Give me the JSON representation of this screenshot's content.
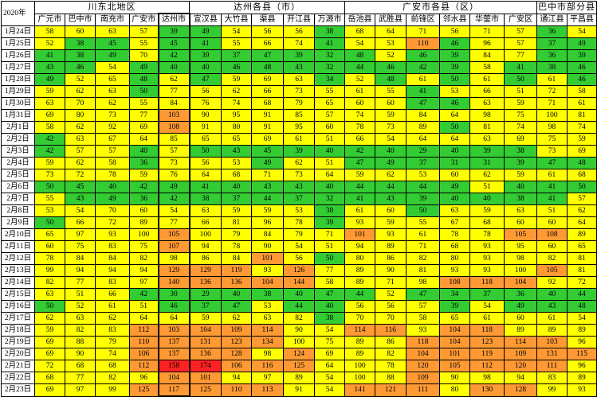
{
  "header": {
    "corner": "2020年",
    "groups": [
      "川东北地区",
      "达州各县（市）",
      "广安市各县（区）",
      "巴中市部分县"
    ],
    "columns": [
      "广元市",
      "巴中市",
      "南充市",
      "广安市",
      "达州市",
      "宣汉县",
      "大竹县",
      "渠县",
      "开江县",
      "万源市",
      "岳池县",
      "武胜县",
      "前锋区",
      "邻水县",
      "华蓥市",
      "广安区",
      "通江县",
      "平昌县"
    ]
  },
  "colors": {
    "yellow": "#ffff00",
    "green": "#33cc33",
    "orange": "#ff9933",
    "red": "#ff2222"
  },
  "rows": [
    {
      "date": "1月24日",
      "values": [
        "58",
        "60",
        "63",
        "57",
        "39",
        "49",
        "54",
        "56",
        "56",
        "38",
        "68",
        "64",
        "71",
        "56",
        "71",
        "57",
        "36",
        "54"
      ],
      "levels": [
        "y",
        "y",
        "y",
        "y",
        "g",
        "g",
        "y",
        "y",
        "y",
        "g",
        "y",
        "y",
        "y",
        "y",
        "y",
        "y",
        "g",
        "y"
      ]
    },
    {
      "date": "1月25日",
      "values": [
        "52",
        "38",
        "45",
        "55",
        "45",
        "41",
        "55",
        "66",
        "74",
        "41",
        "54",
        "53",
        "110",
        "46",
        "96",
        "57",
        "37",
        "49"
      ],
      "levels": [
        "y",
        "g",
        "g",
        "y",
        "g",
        "g",
        "y",
        "y",
        "y",
        "g",
        "y",
        "y",
        "o",
        "g",
        "y",
        "y",
        "g",
        "g"
      ]
    },
    {
      "date": "1月26日",
      "values": [
        "41",
        "38",
        "49",
        "70",
        "42",
        "39",
        "37",
        "47",
        "39",
        "32",
        "48",
        "52",
        "46",
        "39",
        "84",
        "77",
        "36",
        "39"
      ],
      "levels": [
        "g",
        "g",
        "g",
        "y",
        "g",
        "g",
        "g",
        "g",
        "g",
        "g",
        "g",
        "y",
        "g",
        "g",
        "y",
        "y",
        "g",
        "g"
      ]
    },
    {
      "date": "1月27日",
      "values": [
        "43",
        "46",
        "54",
        "49",
        "40",
        "40",
        "46",
        "48",
        "43",
        "32",
        "44",
        "46",
        "42",
        "39",
        "58",
        "41",
        "38",
        "46"
      ],
      "levels": [
        "g",
        "g",
        "y",
        "g",
        "g",
        "g",
        "g",
        "g",
        "g",
        "g",
        "g",
        "g",
        "g",
        "g",
        "y",
        "g",
        "g",
        "g"
      ]
    },
    {
      "date": "1月28日",
      "values": [
        "49",
        "52",
        "65",
        "48",
        "62",
        "47",
        "59",
        "69",
        "63",
        "34",
        "52",
        "48",
        "61",
        "50",
        "61",
        "50",
        "61",
        "46"
      ],
      "levels": [
        "g",
        "y",
        "y",
        "g",
        "y",
        "g",
        "y",
        "y",
        "y",
        "g",
        "y",
        "g",
        "y",
        "g",
        "y",
        "g",
        "y",
        "g"
      ]
    },
    {
      "date": "1月29日",
      "values": [
        "59",
        "62",
        "63",
        "50",
        "77",
        "56",
        "62",
        "66",
        "73",
        "55",
        "61",
        "55",
        "41",
        "53",
        "66",
        "51",
        "72",
        "58"
      ],
      "levels": [
        "y",
        "y",
        "y",
        "g",
        "y",
        "y",
        "y",
        "y",
        "y",
        "y",
        "y",
        "y",
        "g",
        "y",
        "y",
        "y",
        "y",
        "y"
      ]
    },
    {
      "date": "1月30日",
      "values": [
        "63",
        "70",
        "62",
        "55",
        "84",
        "76",
        "74",
        "68",
        "79",
        "65",
        "60",
        "60",
        "47",
        "46",
        "63",
        "59",
        "71",
        "61"
      ],
      "levels": [
        "y",
        "y",
        "y",
        "y",
        "y",
        "y",
        "y",
        "y",
        "y",
        "y",
        "y",
        "y",
        "g",
        "g",
        "y",
        "y",
        "y",
        "y"
      ]
    },
    {
      "date": "1月31日",
      "values": [
        "69",
        "80",
        "73",
        "77",
        "103",
        "90",
        "95",
        "91",
        "85",
        "57",
        "74",
        "59",
        "84",
        "64",
        "98",
        "75",
        "100",
        "81"
      ],
      "levels": [
        "y",
        "y",
        "y",
        "y",
        "o",
        "y",
        "y",
        "y",
        "y",
        "y",
        "y",
        "y",
        "y",
        "y",
        "y",
        "y",
        "y",
        "y"
      ]
    },
    {
      "date": "2月1日",
      "values": [
        "58",
        "62",
        "92",
        "69",
        "108",
        "91",
        "80",
        "91",
        "95",
        "60",
        "78",
        "73",
        "89",
        "50",
        "81",
        "74",
        "98",
        "74"
      ],
      "levels": [
        "y",
        "y",
        "y",
        "y",
        "o",
        "y",
        "y",
        "y",
        "y",
        "y",
        "y",
        "y",
        "y",
        "g",
        "y",
        "y",
        "y",
        "y"
      ]
    },
    {
      "date": "2月2日",
      "values": [
        "42",
        "63",
        "67",
        "64",
        "85",
        "65",
        "65",
        "69",
        "61",
        "51",
        "66",
        "54",
        "64",
        "64",
        "63",
        "69",
        "75",
        "59"
      ],
      "levels": [
        "g",
        "y",
        "y",
        "y",
        "y",
        "y",
        "y",
        "y",
        "y",
        "y",
        "y",
        "y",
        "y",
        "y",
        "y",
        "y",
        "y",
        "y"
      ]
    },
    {
      "date": "2月3日",
      "values": [
        "42",
        "57",
        "57",
        "40",
        "57",
        "50",
        "43",
        "45",
        "39",
        "40",
        "42",
        "40",
        "29",
        "40",
        "39",
        "38",
        "73",
        "69"
      ],
      "levels": [
        "g",
        "y",
        "y",
        "g",
        "y",
        "g",
        "g",
        "g",
        "g",
        "g",
        "g",
        "g",
        "g",
        "g",
        "g",
        "g",
        "y",
        "y"
      ]
    },
    {
      "date": "2月4日",
      "values": [
        "59",
        "62",
        "58",
        "36",
        "73",
        "56",
        "53",
        "49",
        "62",
        "51",
        "47",
        "49",
        "37",
        "31",
        "31",
        "39",
        "47",
        "48"
      ],
      "levels": [
        "y",
        "y",
        "y",
        "g",
        "y",
        "y",
        "y",
        "g",
        "y",
        "y",
        "g",
        "g",
        "g",
        "g",
        "g",
        "g",
        "g",
        "g"
      ]
    },
    {
      "date": "2月5日",
      "values": [
        "73",
        "72",
        "78",
        "59",
        "76",
        "64",
        "68",
        "71",
        "73",
        "64",
        "59",
        "62",
        "53",
        "60",
        "62",
        "59",
        "61",
        "68"
      ],
      "levels": [
        "y",
        "y",
        "y",
        "y",
        "y",
        "y",
        "y",
        "y",
        "y",
        "y",
        "y",
        "y",
        "y",
        "y",
        "y",
        "y",
        "y",
        "y"
      ]
    },
    {
      "date": "2月6日",
      "values": [
        "50",
        "45",
        "40",
        "42",
        "49",
        "41",
        "40",
        "43",
        "43",
        "40",
        "44",
        "44",
        "44",
        "49",
        "51",
        "40",
        "41",
        "50"
      ],
      "levels": [
        "g",
        "g",
        "g",
        "g",
        "g",
        "g",
        "g",
        "g",
        "g",
        "g",
        "g",
        "g",
        "g",
        "g",
        "y",
        "g",
        "g",
        "g"
      ]
    },
    {
      "date": "2月7日",
      "values": [
        "55",
        "43",
        "49",
        "36",
        "42",
        "38",
        "37",
        "44",
        "37",
        "32",
        "41",
        "43",
        "39",
        "40",
        "40",
        "38",
        "41",
        "57"
      ],
      "levels": [
        "y",
        "g",
        "g",
        "g",
        "g",
        "g",
        "g",
        "g",
        "g",
        "g",
        "g",
        "g",
        "g",
        "g",
        "g",
        "g",
        "g",
        "y"
      ]
    },
    {
      "date": "2月8日",
      "values": [
        "53",
        "54",
        "70",
        "60",
        "54",
        "63",
        "59",
        "59",
        "53",
        "38",
        "61",
        "60",
        "50",
        "63",
        "59",
        "63",
        "51",
        "62"
      ],
      "levels": [
        "y",
        "y",
        "y",
        "y",
        "y",
        "y",
        "y",
        "y",
        "y",
        "g",
        "y",
        "y",
        "g",
        "y",
        "y",
        "y",
        "y",
        "y"
      ]
    },
    {
      "date": "2月9日",
      "values": [
        "50",
        "66",
        "72",
        "89",
        "77",
        "66",
        "81",
        "96",
        "78",
        "39",
        "93",
        "59",
        "55",
        "67",
        "68",
        "60",
        "60",
        "64"
      ],
      "levels": [
        "g",
        "y",
        "y",
        "y",
        "y",
        "y",
        "y",
        "y",
        "y",
        "g",
        "y",
        "y",
        "y",
        "y",
        "y",
        "y",
        "y",
        "y"
      ]
    },
    {
      "date": "2月10日",
      "values": [
        "65",
        "97",
        "93",
        "100",
        "105",
        "100",
        "79",
        "84",
        "79",
        "71",
        "101",
        "93",
        "61",
        "78",
        "78",
        "105",
        "108",
        "89"
      ],
      "levels": [
        "y",
        "y",
        "y",
        "y",
        "o",
        "y",
        "y",
        "y",
        "y",
        "y",
        "o",
        "y",
        "y",
        "y",
        "y",
        "o",
        "o",
        "y"
      ]
    },
    {
      "date": "2月11日",
      "values": [
        "60",
        "75",
        "83",
        "75",
        "107",
        "94",
        "78",
        "90",
        "54",
        "51",
        "94",
        "89",
        "71",
        "68",
        "93",
        "95",
        "60",
        "65"
      ],
      "levels": [
        "y",
        "y",
        "y",
        "y",
        "o",
        "y",
        "y",
        "y",
        "y",
        "y",
        "y",
        "y",
        "y",
        "y",
        "y",
        "y",
        "y",
        "y"
      ]
    },
    {
      "date": "2月12日",
      "values": [
        "78",
        "84",
        "84",
        "82",
        "98",
        "86",
        "84",
        "101",
        "56",
        "50",
        "80",
        "86",
        "82",
        "80",
        "93",
        "98",
        "82",
        "81"
      ],
      "levels": [
        "y",
        "y",
        "y",
        "y",
        "y",
        "y",
        "y",
        "o",
        "y",
        "g",
        "y",
        "y",
        "y",
        "y",
        "y",
        "y",
        "y",
        "y"
      ]
    },
    {
      "date": "2月13日",
      "values": [
        "99",
        "94",
        "94",
        "94",
        "129",
        "129",
        "119",
        "93",
        "126",
        "77",
        "89",
        "90",
        "81",
        "93",
        "93",
        "100",
        "105",
        "81"
      ],
      "levels": [
        "y",
        "y",
        "y",
        "y",
        "o",
        "o",
        "o",
        "y",
        "o",
        "y",
        "y",
        "y",
        "y",
        "y",
        "y",
        "y",
        "o",
        "y"
      ]
    },
    {
      "date": "2月14日",
      "values": [
        "82",
        "77",
        "83",
        "97",
        "140",
        "136",
        "136",
        "104",
        "144",
        "58",
        "89",
        "71",
        "98",
        "108",
        "118",
        "104",
        "92",
        "72"
      ],
      "levels": [
        "y",
        "y",
        "y",
        "y",
        "o",
        "o",
        "o",
        "o",
        "o",
        "y",
        "y",
        "y",
        "y",
        "o",
        "o",
        "o",
        "y",
        "y"
      ]
    },
    {
      "date": "2月15日",
      "values": [
        "63",
        "51",
        "66",
        "42",
        "30",
        "29",
        "40",
        "38",
        "40",
        "47",
        "44",
        "52",
        "47",
        "34",
        "37",
        "36",
        "40",
        "44"
      ],
      "levels": [
        "y",
        "y",
        "y",
        "g",
        "g",
        "g",
        "g",
        "g",
        "g",
        "g",
        "g",
        "y",
        "g",
        "g",
        "g",
        "g",
        "g",
        "g"
      ]
    },
    {
      "date": "2月16日",
      "values": [
        "50",
        "52",
        "61",
        "51",
        "46",
        "37",
        "47",
        "53",
        "44",
        "40",
        "56",
        "56",
        "57",
        "39",
        "54",
        "49",
        "43",
        "48"
      ],
      "levels": [
        "g",
        "y",
        "y",
        "y",
        "g",
        "g",
        "g",
        "y",
        "g",
        "g",
        "y",
        "y",
        "y",
        "g",
        "y",
        "g",
        "g",
        "g"
      ]
    },
    {
      "date": "2月17日",
      "values": [
        "62",
        "63",
        "62",
        "64",
        "64",
        "59",
        "62",
        "63",
        "82",
        "38",
        "70",
        "70",
        "58",
        "65",
        "61",
        "60",
        "61",
        "54"
      ],
      "levels": [
        "y",
        "y",
        "y",
        "y",
        "y",
        "y",
        "y",
        "y",
        "y",
        "g",
        "y",
        "y",
        "y",
        "y",
        "y",
        "y",
        "y",
        "y"
      ]
    },
    {
      "date": "2月18日",
      "values": [
        "59",
        "82",
        "83",
        "112",
        "103",
        "104",
        "109",
        "114",
        "90",
        "54",
        "114",
        "116",
        "93",
        "104",
        "118",
        "89",
        "89",
        "89"
      ],
      "levels": [
        "y",
        "y",
        "y",
        "o",
        "o",
        "o",
        "o",
        "o",
        "y",
        "y",
        "o",
        "o",
        "y",
        "o",
        "o",
        "y",
        "y",
        "y"
      ]
    },
    {
      "date": "2月19日",
      "values": [
        "69",
        "88",
        "79",
        "110",
        "137",
        "131",
        "123",
        "134",
        "100",
        "75",
        "89",
        "86",
        "118",
        "104",
        "123",
        "114",
        "103",
        "96"
      ],
      "levels": [
        "y",
        "y",
        "y",
        "o",
        "o",
        "o",
        "o",
        "o",
        "y",
        "y",
        "y",
        "y",
        "o",
        "o",
        "o",
        "o",
        "o",
        "y"
      ]
    },
    {
      "date": "2月20日",
      "values": [
        "69",
        "90",
        "74",
        "106",
        "137",
        "136",
        "128",
        "98",
        "124",
        "69",
        "89",
        "82",
        "104",
        "101",
        "119",
        "109",
        "131",
        "115"
      ],
      "levels": [
        "y",
        "y",
        "y",
        "o",
        "o",
        "o",
        "o",
        "y",
        "o",
        "y",
        "y",
        "y",
        "o",
        "o",
        "o",
        "o",
        "o",
        "o"
      ]
    },
    {
      "date": "2月21日",
      "values": [
        "72",
        "68",
        "68",
        "112",
        "158",
        "174",
        "106",
        "116",
        "125",
        "64",
        "100",
        "78",
        "120",
        "105",
        "112",
        "120",
        "111",
        "96"
      ],
      "levels": [
        "y",
        "y",
        "y",
        "o",
        "r",
        "r",
        "o",
        "o",
        "o",
        "y",
        "y",
        "y",
        "o",
        "o",
        "o",
        "o",
        "o",
        "y"
      ]
    },
    {
      "date": "2月22日",
      "values": [
        "68",
        "77",
        "82",
        "96",
        "104",
        "101",
        "94",
        "97",
        "89",
        "54",
        "100",
        "88",
        "109",
        "90",
        "98",
        "94",
        "83",
        "89"
      ],
      "levels": [
        "y",
        "y",
        "y",
        "y",
        "o",
        "o",
        "y",
        "y",
        "y",
        "y",
        "y",
        "y",
        "o",
        "y",
        "y",
        "y",
        "y",
        "y"
      ]
    },
    {
      "date": "2月23日",
      "values": [
        "69",
        "97",
        "99",
        "125",
        "117",
        "125",
        "110",
        "113",
        "91",
        "54",
        "141",
        "121",
        "111",
        "80",
        "130",
        "128",
        "99",
        "93"
      ],
      "levels": [
        "y",
        "y",
        "y",
        "o",
        "o",
        "o",
        "o",
        "o",
        "y",
        "y",
        "o",
        "o",
        "o",
        "y",
        "o",
        "o",
        "y",
        "y"
      ]
    }
  ]
}
